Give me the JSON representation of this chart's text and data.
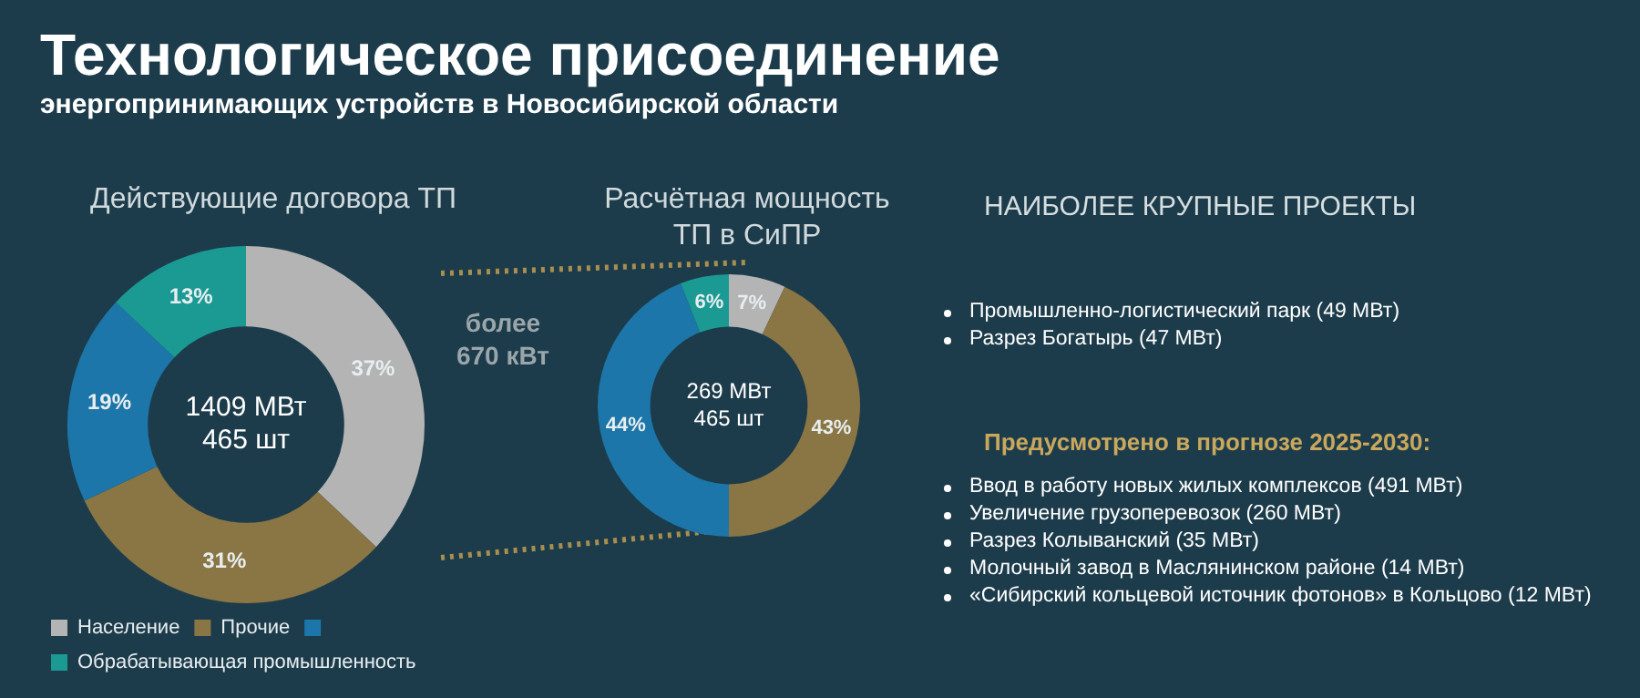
{
  "chart_data": [
    {
      "type": "other",
      "title": "Технологическое присоединение",
      "subtitle": "энергопринимающих устройств в Новосибирской области"
    },
    {
      "type": "donut",
      "title": "Действующие договора ТП",
      "categories": [
        "Население",
        "Прочие",
        null,
        "Обрабатывающая промышленность"
      ],
      "values": [
        37,
        31,
        19,
        13
      ],
      "colors": [
        "#b4b4b4",
        "#8a7644",
        "#1c76a9",
        "#1b9a94"
      ],
      "value_labels": [
        "37%",
        "31%",
        "19%",
        "13%"
      ],
      "legend": "bottom",
      "annotations": [
        "1409 МВт",
        "465 шт"
      ]
    },
    {
      "type": "donut",
      "title": "Расчётная мощность ТП в СиПР",
      "categories": [
        null,
        null,
        null,
        null
      ],
      "values": [
        7,
        43,
        44,
        6
      ],
      "colors": [
        "#b4b4b4",
        "#8a7644",
        "#1c76a9",
        "#1b9a94"
      ],
      "value_labels": [
        "7%",
        "43%",
        "44%",
        "6%"
      ],
      "annotations": [
        "269 МВт",
        "465 шт",
        "более 670 кВт"
      ]
    },
    {
      "type": "other",
      "title": "НАИБОЛЕЕ КРУПНЫЕ ПРОЕКТЫ",
      "annotations": [
        "Промышленно-логистический парк (49 МВт)",
        "Разрез Богатырь (47 МВт)"
      ]
    },
    {
      "type": "other",
      "title": "Предусмотрено в прогнозе 2025-2030:",
      "annotations": [
        "Ввод в работу новых жилых комплексов (491 МВт)",
        "Увеличение грузоперевозок (260 МВт)",
        "Разрез Колыванский (35 МВт)",
        "Молочный завод в Маслянинском районе (14 МВт)",
        "«Сибирский кольцевой источник фотонов» в Кольцово (12 МВт)"
      ]
    }
  ]
}
